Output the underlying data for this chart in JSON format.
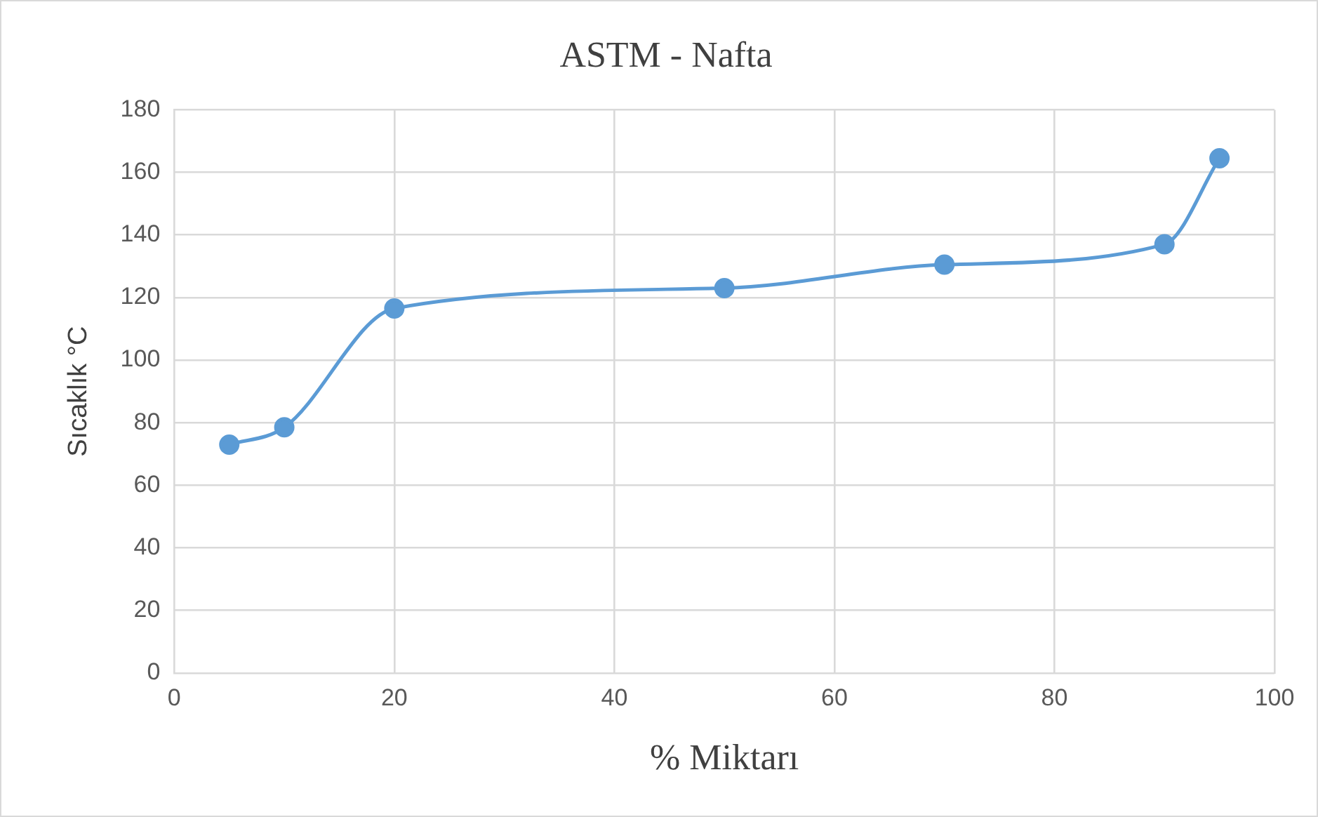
{
  "chart_data": {
    "type": "line",
    "title": "ASTM - Nafta",
    "xlabel": "% Miktarı",
    "ylabel": "Sıcaklık °C",
    "x": [
      5,
      10,
      20,
      50,
      70,
      90,
      95
    ],
    "series": [
      {
        "color": "#5b9bd5",
        "values": [
          73,
          78.5,
          116.5,
          123,
          130.5,
          137,
          164.5
        ]
      }
    ],
    "xlim": [
      0,
      100
    ],
    "xticks": [
      0,
      20,
      40,
      60,
      80,
      100
    ],
    "ylim": [
      0,
      180
    ],
    "yticks": [
      0,
      20,
      40,
      60,
      80,
      100,
      120,
      140,
      160,
      180
    ],
    "grid": true,
    "marker": "circle",
    "line_style": "solid"
  }
}
